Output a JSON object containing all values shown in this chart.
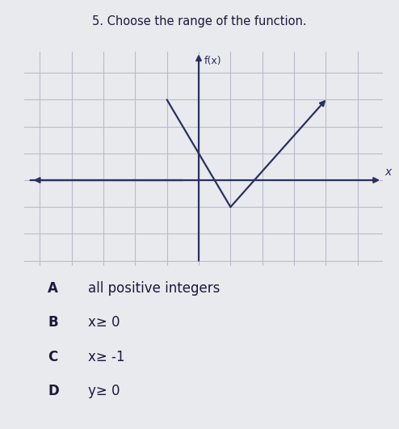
{
  "title_question": "5. Choose the range of the function.",
  "graph_title": "f(x)",
  "bg_color": "#e8eaee",
  "graph_bg_color": "#f0f0f0",
  "grid_color": "#bbbbcc",
  "line_color": "#2a3060",
  "text_color": "#1a1a3a",
  "choices": [
    [
      "A",
      "all positive integers"
    ],
    [
      "B",
      "x≥ 0"
    ],
    [
      "C",
      "x≥ -1"
    ],
    [
      "D",
      "y≥ 0"
    ]
  ],
  "v_vertex_x": 1,
  "v_vertex_y": -1,
  "v_left_x": -1,
  "v_left_y": 3,
  "v_right_x": 4,
  "v_right_y": 3,
  "horiz_line_y": 0,
  "horiz_left_x": -5.2,
  "horiz_right_x": 5.2,
  "xlim": [
    -5.5,
    5.8
  ],
  "ylim": [
    -3.2,
    4.8
  ],
  "figsize": [
    4.94,
    5.31
  ],
  "dpi": 100
}
